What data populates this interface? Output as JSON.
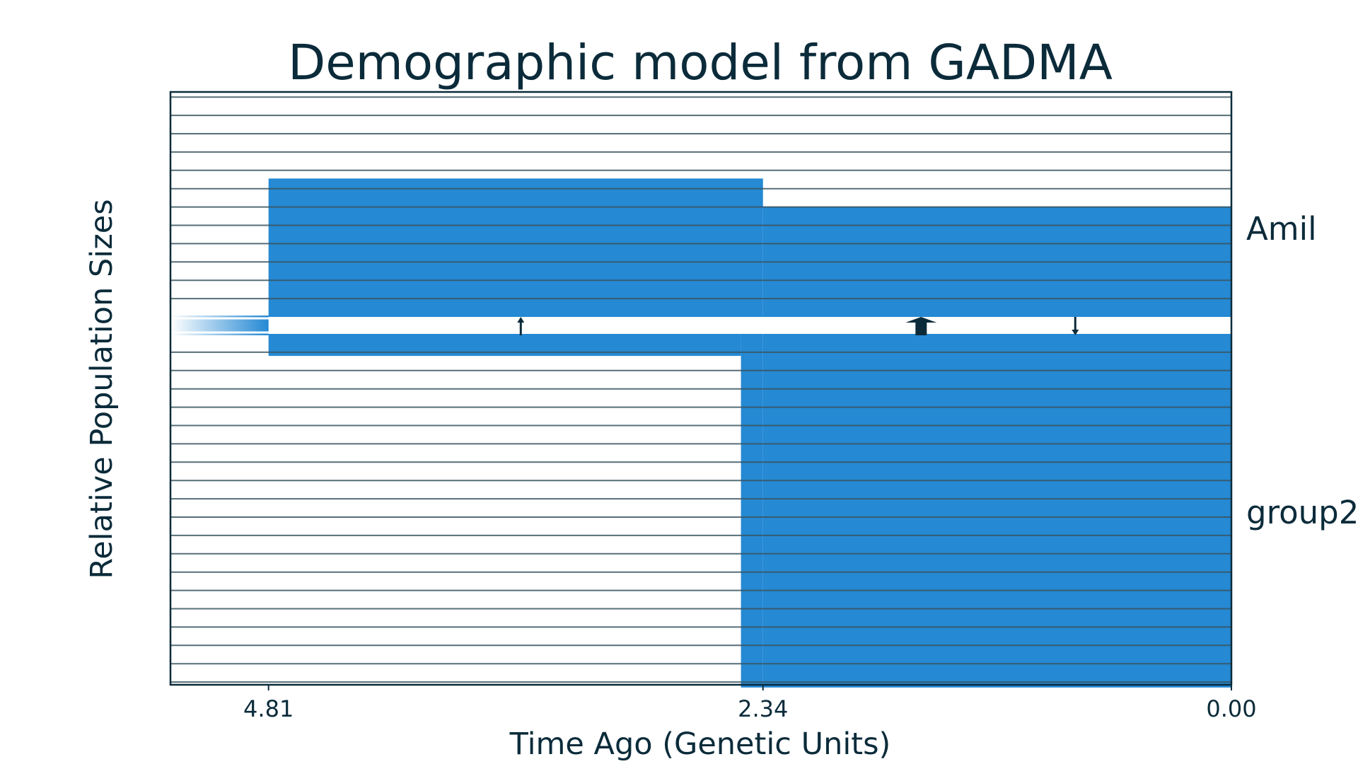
{
  "chart_data": {
    "type": "area",
    "title": "Demographic model from GADMA",
    "xlabel": "Time Ago (Genetic Units)",
    "ylabel": "Relative Population Sizes",
    "x_ticks": [
      4.81,
      2.34,
      0.0
    ],
    "x_tick_labels": [
      "4.81",
      "2.34",
      "0.00"
    ],
    "xlim": [
      5.3,
      0.0
    ],
    "grid": true,
    "populations": [
      {
        "name": "Amil",
        "segments": [
          {
            "start": 4.81,
            "end": 2.34,
            "size_start": 12.3,
            "size_end": 12.3
          },
          {
            "start": 2.34,
            "end": 0.0,
            "size_start": 9.8,
            "size_end": 9.8
          }
        ]
      },
      {
        "name": "group2",
        "segments": [
          {
            "start": 4.81,
            "end": 2.45,
            "size_start": 1.2,
            "size_end": 1.2
          },
          {
            "start": 2.45,
            "end": 2.34,
            "size_start": 19.3,
            "size_end": 19.3
          },
          {
            "start": 2.34,
            "end": 0.0,
            "size_start": 19.3,
            "size_end": 19.3
          }
        ]
      }
    ],
    "ancestral": {
      "start": 5.3,
      "end": 4.81,
      "size": 1.1
    },
    "migrations": [
      {
        "time": 3.55,
        "direction": "up",
        "strength": "weak"
      },
      {
        "time": 1.55,
        "direction": "up",
        "strength": "strong"
      },
      {
        "time": 0.78,
        "direction": "down",
        "strength": "weak"
      }
    ],
    "colors": {
      "population": "#2589d4",
      "grid": "#3a5560",
      "frame": "#0b2b3a",
      "arrow": "#0b2b3a",
      "text": "#0b2b3a"
    }
  }
}
